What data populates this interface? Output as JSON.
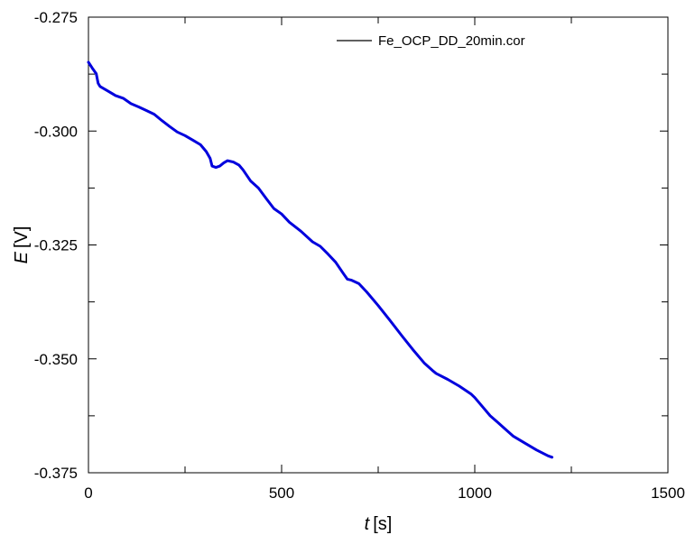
{
  "chart_data": {
    "type": "line",
    "title": "",
    "xlabel": {
      "var": "t",
      "unit": "[s]"
    },
    "ylabel": {
      "var": "E",
      "unit": "[V]"
    },
    "xlim": [
      0,
      1500
    ],
    "ylim": [
      -0.375,
      -0.275
    ],
    "x_ticks": [
      {
        "value": 0,
        "label": "0"
      },
      {
        "value": 500,
        "label": "500"
      },
      {
        "value": 1000,
        "label": "1000"
      },
      {
        "value": 1500,
        "label": "1500"
      }
    ],
    "x_minor_ticks": [
      250,
      750,
      1250
    ],
    "y_ticks": [
      {
        "value": -0.275,
        "label": "-0.275"
      },
      {
        "value": -0.3,
        "label": "-0.300"
      },
      {
        "value": -0.325,
        "label": "-0.325"
      },
      {
        "value": -0.35,
        "label": "-0.350"
      },
      {
        "value": -0.375,
        "label": "-0.375"
      }
    ],
    "y_minor_ticks": [
      -0.2875,
      -0.3125,
      -0.3375,
      -0.3625
    ],
    "grid": false,
    "legend_position": "top-right",
    "series": [
      {
        "name": "Fe_OCP_DD_20min.cor",
        "color": "#0000dd",
        "legend_color": "#000000",
        "x": [
          0,
          10,
          20,
          25,
          30,
          50,
          70,
          90,
          110,
          130,
          150,
          170,
          190,
          210,
          230,
          250,
          270,
          290,
          305,
          315,
          320,
          330,
          340,
          350,
          360,
          375,
          390,
          400,
          420,
          440,
          460,
          480,
          500,
          520,
          550,
          580,
          600,
          620,
          640,
          660,
          670,
          680,
          700,
          720,
          750,
          780,
          810,
          840,
          870,
          890,
          900,
          930,
          960,
          990,
          1000,
          1020,
          1040,
          1060,
          1080,
          1100,
          1130,
          1160,
          1190,
          1200
        ],
        "y": [
          -0.2849,
          -0.2862,
          -0.2874,
          -0.2895,
          -0.2902,
          -0.2912,
          -0.2922,
          -0.2928,
          -0.294,
          -0.2947,
          -0.2955,
          -0.2963,
          -0.2977,
          -0.299,
          -0.3002,
          -0.301,
          -0.302,
          -0.303,
          -0.3045,
          -0.306,
          -0.3077,
          -0.308,
          -0.3077,
          -0.307,
          -0.3065,
          -0.3068,
          -0.3075,
          -0.3085,
          -0.311,
          -0.3125,
          -0.3148,
          -0.317,
          -0.3182,
          -0.32,
          -0.322,
          -0.3243,
          -0.3253,
          -0.327,
          -0.3288,
          -0.3313,
          -0.3325,
          -0.3327,
          -0.3335,
          -0.3353,
          -0.3383,
          -0.3415,
          -0.3448,
          -0.348,
          -0.351,
          -0.3525,
          -0.3532,
          -0.3545,
          -0.356,
          -0.3577,
          -0.3585,
          -0.3605,
          -0.3625,
          -0.364,
          -0.3655,
          -0.367,
          -0.3685,
          -0.37,
          -0.3713,
          -0.3716
        ]
      }
    ]
  }
}
